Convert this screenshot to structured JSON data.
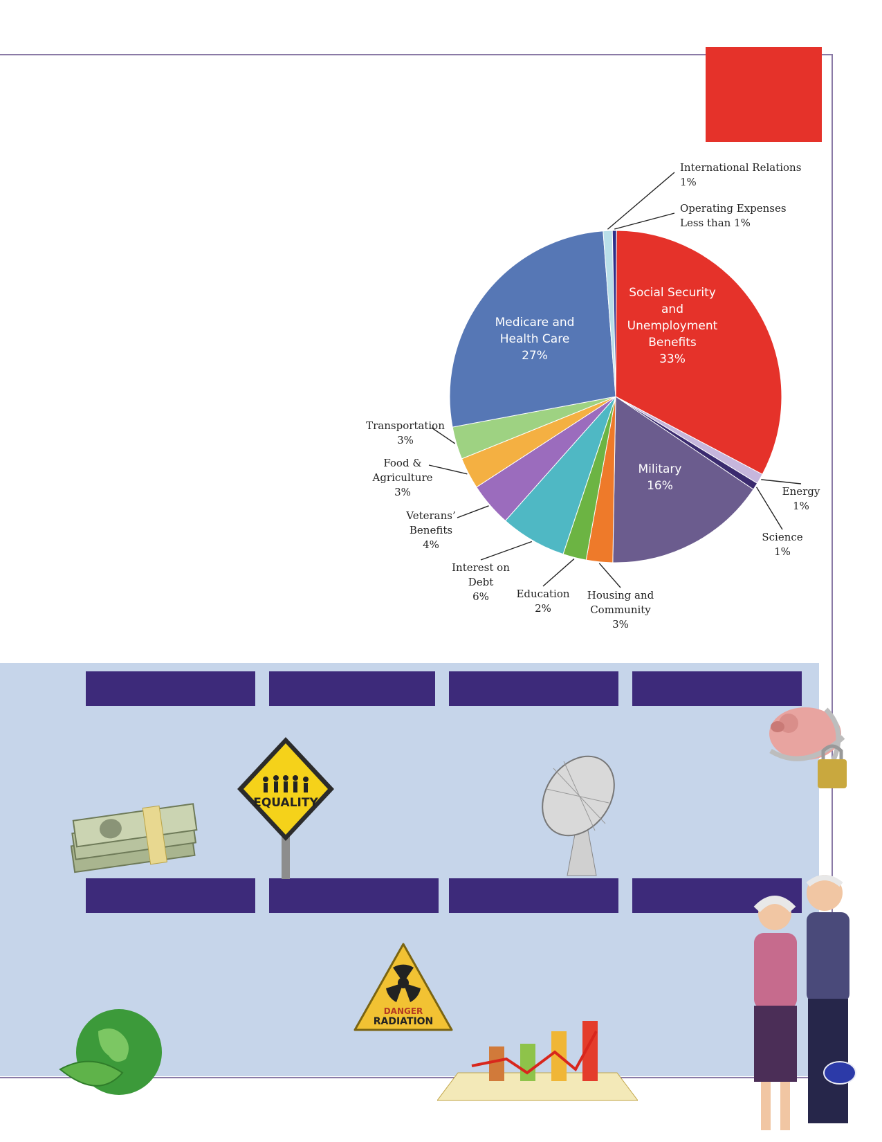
{
  "colors": {
    "accent_red": "#e5322a",
    "band": "#c6d5ea",
    "bar": "#3d2a7a",
    "frame": "#8a7aa6"
  },
  "chart_data": {
    "type": "pie",
    "slices": [
      {
        "label": "Social Security and Unemployment Benefits",
        "lines": [
          "Social Security",
          "and",
          "Unemployment",
          "Benefits",
          "33%"
        ],
        "value": 33,
        "color": "#e5322a",
        "inside": true
      },
      {
        "label": "Energy",
        "lines": [
          "Energy",
          "1%"
        ],
        "value": 1,
        "color": "#c6b6dc"
      },
      {
        "label": "Science",
        "lines": [
          "Science",
          "1%"
        ],
        "value": 0.7,
        "color": "#3a2a6e"
      },
      {
        "label": "Military",
        "lines": [
          "Military",
          "16%"
        ],
        "value": 16,
        "color": "#6b5c8e",
        "inside": true
      },
      {
        "label": "Housing and Community",
        "lines": [
          "Housing and",
          "Community",
          "3%"
        ],
        "value": 2.6,
        "color": "#ee7a2a"
      },
      {
        "label": "Education",
        "lines": [
          "Education",
          "2%"
        ],
        "value": 2.3,
        "color": "#6cb443"
      },
      {
        "label": "Interest on Debt",
        "lines": [
          "Interest on",
          "Debt",
          "6%"
        ],
        "value": 6.5,
        "color": "#4fb8c4"
      },
      {
        "label": "Veterans' Benefits",
        "lines": [
          "Veterans’",
          "Benefits",
          "4%"
        ],
        "value": 4.3,
        "color": "#9b6cbd"
      },
      {
        "label": "Food & Agriculture",
        "lines": [
          "Food &",
          "Agriculture",
          "3%"
        ],
        "value": 3.1,
        "color": "#f4b042"
      },
      {
        "label": "Transportation",
        "lines": [
          "Transportation",
          "3%"
        ],
        "value": 3.2,
        "color": "#9ed282"
      },
      {
        "label": "Medicare and Health Care",
        "lines": [
          "Medicare and",
          "Health Care",
          "27%"
        ],
        "value": 27,
        "color": "#5677b5",
        "inside": true
      },
      {
        "label": "International Relations",
        "lines": [
          "International Relations",
          "1%"
        ],
        "value": 0.9,
        "color": "#b9dfe9"
      },
      {
        "label": "Operating Expenses",
        "lines": [
          "Operating Expenses",
          "Less than 1%"
        ],
        "value": 0.4,
        "color": "#2f2f8a"
      }
    ]
  },
  "images": {
    "money": "money-stack-icon",
    "equality": "equality-sign-icon",
    "satellite": "satellite-dish-icon",
    "piggy": "chained-piggy-bank-icon",
    "radiation": "radiation-sign-icon",
    "globe": "green-globe-icon",
    "growth_chart": "growth-chart-icon",
    "couple": "elderly-couple-icon"
  },
  "signs": {
    "equality_text": "EQUALITY",
    "radiation_line1": "DANGER",
    "radiation_line2": "RADIATION"
  }
}
